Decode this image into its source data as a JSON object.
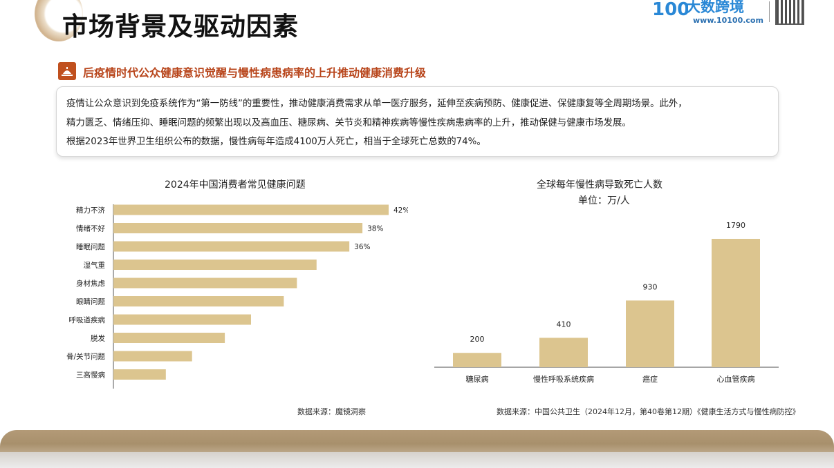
{
  "header": {
    "title": "市场背景及驱动因素",
    "logo_name": "大数跨境",
    "logo_url": "www.10100.com",
    "logo_mark": "100"
  },
  "section": {
    "title": "后疫情时代公众健康意识觉醒与慢性病患病率的上升推动健康消费升级"
  },
  "info": {
    "lines": [
      "疫情让公众意识到免疫系统作为“第一防线”的重要性，推动健康消费需求从单一医疗服务，延伸至疾病预防、健康促进、保健康复等全周期场景。此外，",
      "精力匮乏、情绪压抑、睡眠问题的频繁出现以及高血压、糖尿病、关节炎和精神疾病等慢性疾病患病率的上升，推动保健与健康市场发展。",
      "根据2023年世界卫生组织公布的数据，慢性病每年造成4100万人死亡，相当于全球死亡总数的74%。"
    ]
  },
  "colors": {
    "bar": "#dcc58f",
    "accent": "#b8451b",
    "axis": "#555555"
  },
  "chart_data": [
    {
      "type": "bar",
      "orientation": "horizontal",
      "title": "2024年中国消费者常见健康问题",
      "categories": [
        "精力不济",
        "情绪不好",
        "睡眠问题",
        "湿气重",
        "身材焦虑",
        "眼睛问题",
        "呼吸道疾病",
        "脱发",
        "骨/关节问题",
        "三高慢病"
      ],
      "values": [
        42,
        38,
        36,
        31,
        28,
        26,
        21,
        17,
        12,
        8
      ],
      "value_labels": [
        "42%",
        "38%",
        "36%",
        "",
        "",
        "",
        "",
        "",
        "",
        ""
      ],
      "unit": "%",
      "xlim": [
        0,
        45
      ],
      "source": "数据来源：魔镜洞察"
    },
    {
      "type": "bar",
      "orientation": "vertical",
      "title": "全球每年慢性病导致死亡人数",
      "subtitle": "单位：万/人",
      "categories": [
        "糖尿病",
        "慢性呼吸系统疾病",
        "癌症",
        "心血管疾病"
      ],
      "values": [
        200,
        410,
        930,
        1790
      ],
      "value_labels": [
        "200",
        "410",
        "930",
        "1790"
      ],
      "ylim": [
        0,
        2100
      ],
      "source": "数据来源：中国公共卫生（2024年12月，第40卷第12期）《健康生活方式与慢性病防控》"
    }
  ]
}
